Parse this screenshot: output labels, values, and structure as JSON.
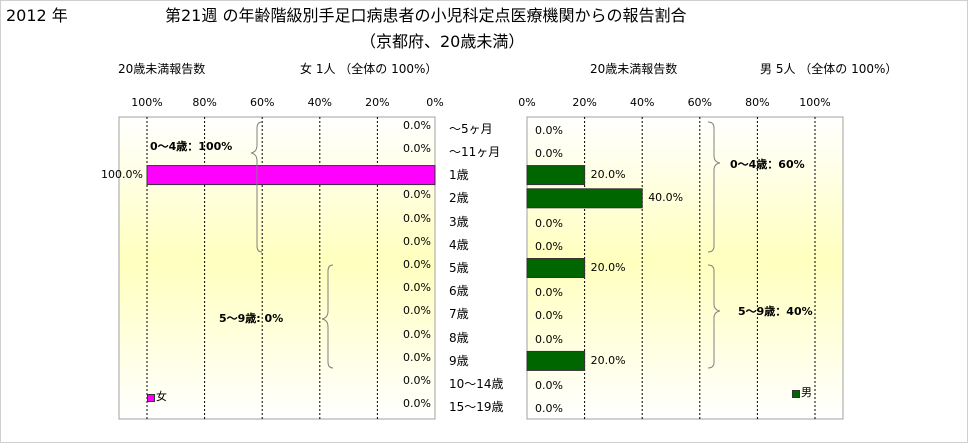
{
  "header": {
    "year": "2012 年",
    "title_line1": "第21週 の年齢階級別手足口病患者の小児科定点医療機関からの報告割合",
    "title_line2": "（京都府、20歳未満）"
  },
  "left_panel": {
    "count_label": "20歳未満報告数",
    "summary": "女  1人 （全体の  100%）",
    "ticks": [
      "100%",
      "80%",
      "60%",
      "40%",
      "20%",
      "0%"
    ],
    "group_labels": [
      "0～4歳：100%",
      "5～9歳:  0%"
    ],
    "legend": "女",
    "color": "#ff00ff"
  },
  "right_panel": {
    "count_label": "20歳未満報告数",
    "summary": "男  5人 （全体の  100%）",
    "ticks": [
      "0%",
      "20%",
      "40%",
      "60%",
      "80%",
      "100%"
    ],
    "group_labels": [
      "0～4歳：60%",
      "5～9歳：40%"
    ],
    "legend": "男",
    "color": "#006600"
  },
  "chart_data": [
    {
      "type": "bar",
      "orientation": "horizontal",
      "categories": [
        "～5ヶ月",
        "～11ヶ月",
        "1歳",
        "2歳",
        "3歳",
        "4歳",
        "5歳",
        "6歳",
        "7歳",
        "8歳",
        "9歳",
        "10～14歳",
        "15～19歳"
      ],
      "series": [
        {
          "name": "女",
          "values": [
            0,
            0,
            100,
            0,
            0,
            0,
            0,
            0,
            0,
            0,
            0,
            0,
            0
          ]
        }
      ],
      "data_labels": [
        "0.0%",
        "0.0%",
        "100.0%",
        "0.0%",
        "0.0%",
        "0.0%",
        "0.0%",
        "0.0%",
        "0.0%",
        "0.0%",
        "0.0%",
        "0.0%",
        "0.0%"
      ],
      "xlim": [
        100,
        0
      ],
      "x_reversed": true,
      "grid": true
    },
    {
      "type": "bar",
      "orientation": "horizontal",
      "categories": [
        "～5ヶ月",
        "～11ヶ月",
        "1歳",
        "2歳",
        "3歳",
        "4歳",
        "5歳",
        "6歳",
        "7歳",
        "8歳",
        "9歳",
        "10～14歳",
        "15～19歳"
      ],
      "series": [
        {
          "name": "男",
          "values": [
            0,
            0,
            20,
            40,
            0,
            0,
            20,
            0,
            0,
            0,
            20,
            0,
            0
          ]
        }
      ],
      "data_labels": [
        "0.0%",
        "0.0%",
        "20.0%",
        "40.0%",
        "0.0%",
        "0.0%",
        "20.0%",
        "0.0%",
        "0.0%",
        "0.0%",
        "20.0%",
        "0.0%",
        "0.0%"
      ],
      "xlim": [
        0,
        100
      ],
      "grid": true
    }
  ]
}
